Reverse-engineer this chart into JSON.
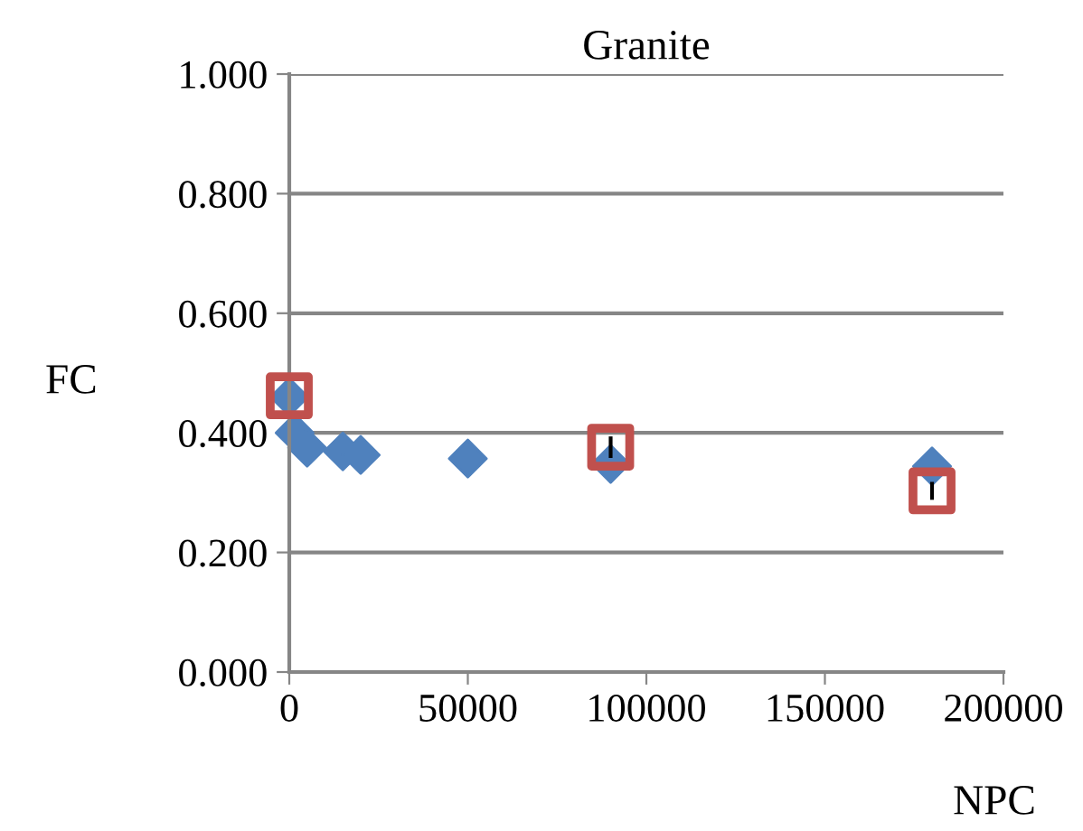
{
  "chart_data": {
    "type": "scatter",
    "title": "Granite",
    "xlabel": "NPC",
    "ylabel": "FC",
    "series": [
      {
        "color": "#4f81bd",
        "marker": "diamond",
        "x": [
          0,
          1500,
          5000,
          15000,
          20000,
          50000,
          90000,
          180000
        ],
        "values": [
          0.46,
          0.4,
          0.375,
          0.369,
          0.363,
          0.357,
          0.348,
          0.344
        ]
      },
      {
        "color": "#c0504d",
        "marker": "square",
        "x": [
          0,
          90000,
          180000
        ],
        "values": [
          0.462,
          0.376,
          0.303
        ],
        "errors": [
          null,
          0.018,
          0.015
        ]
      }
    ],
    "xlim": [
      0,
      200000
    ],
    "xticks": [
      0,
      50000,
      100000,
      150000,
      200000
    ],
    "ylim": [
      0,
      1
    ],
    "yticks": [
      {
        "value": 0,
        "label": "0.000"
      },
      {
        "value": 0.2,
        "label": "0.200"
      },
      {
        "value": 0.4,
        "label": "0.400"
      },
      {
        "value": 0.6,
        "label": "0.600"
      },
      {
        "value": 0.8,
        "label": "0.800"
      },
      {
        "value": 1,
        "label": "1.000"
      }
    ],
    "grid": "y",
    "legend": false
  }
}
